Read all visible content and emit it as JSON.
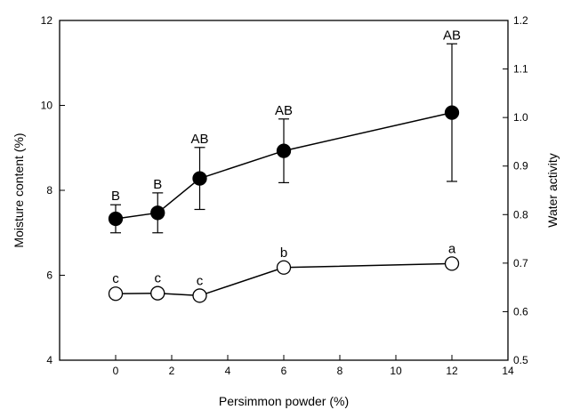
{
  "chart_data": {
    "type": "line",
    "xlabel": "Persimmon powder (%)",
    "ylabel_left": "Moisture content (%)",
    "ylabel_right": "Water activity",
    "xlim": [
      -2,
      14
    ],
    "ylim_left": [
      4,
      12
    ],
    "ylim_right": [
      0.5,
      1.2
    ],
    "x_ticks": [
      "0",
      "2",
      "4",
      "6",
      "8",
      "10",
      "12",
      "14"
    ],
    "y_left_ticks": [
      "4",
      "6",
      "8",
      "10",
      "12"
    ],
    "y_right_ticks": [
      "0.5",
      "0.6",
      "0.7",
      "0.8",
      "0.9",
      "1.0",
      "1.1",
      "1.2"
    ],
    "grid": false,
    "series": [
      {
        "marker": "filled-circle",
        "axis": "left",
        "x": [
          0,
          1.5,
          3,
          6,
          12
        ],
        "y": [
          7.33,
          7.47,
          8.28,
          8.93,
          9.83
        ],
        "err": [
          0.33,
          0.47,
          0.73,
          0.75,
          1.62
        ],
        "labels": [
          "B",
          "B",
          "AB",
          "AB",
          "AB"
        ]
      },
      {
        "marker": "open-circle",
        "axis": "right",
        "x": [
          0,
          1.5,
          3,
          6,
          12
        ],
        "y": [
          0.637,
          0.638,
          0.633,
          0.691,
          0.699
        ],
        "labels": [
          "c",
          "c",
          "c",
          "b",
          "a"
        ]
      }
    ]
  }
}
